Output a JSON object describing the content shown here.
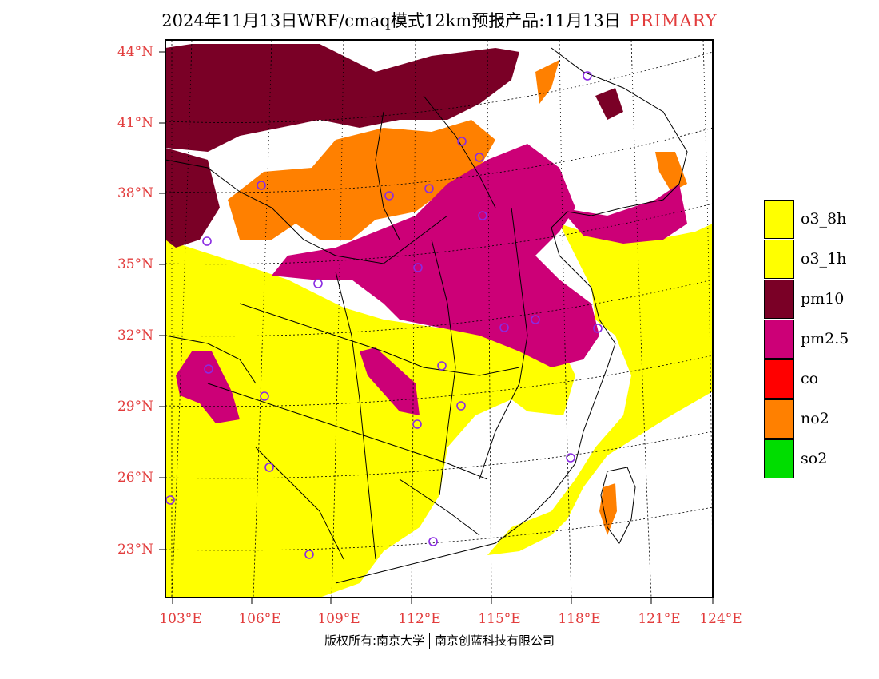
{
  "title": {
    "main": "2024年11月13日WRF/cmaq模式12km预报产品:11月13日",
    "tag": "PRIMARY"
  },
  "latitude_labels": [
    "44°N",
    "41°N",
    "38°N",
    "35°N",
    "32°N",
    "29°N",
    "26°N",
    "23°N"
  ],
  "longitude_labels": [
    "103°E",
    "106°E",
    "109°E",
    "112°E",
    "115°E",
    "118°E",
    "121°E",
    "124°E"
  ],
  "legend": [
    {
      "label": "o3_8h",
      "color": "#ffff00"
    },
    {
      "label": "o3_1h",
      "color": "#ffff00"
    },
    {
      "label": "pm10",
      "color": "#7a0026"
    },
    {
      "label": "pm2.5",
      "color": "#cc0077"
    },
    {
      "label": "co",
      "color": "#ff0000"
    },
    {
      "label": "no2",
      "color": "#ff8000"
    },
    {
      "label": "so2",
      "color": "#00dd00"
    }
  ],
  "credit": {
    "left": "版权所有:南京大学",
    "right": "南京创蓝科技有限公司"
  }
}
